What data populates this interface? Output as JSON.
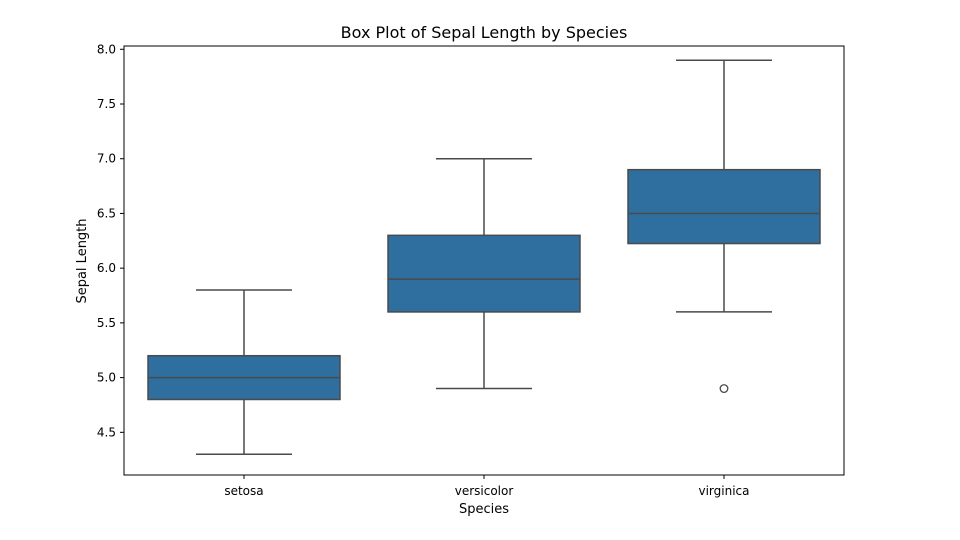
{
  "chart_data": {
    "type": "box",
    "title": "Box Plot of Sepal Length by Species",
    "xlabel": "Species",
    "ylabel": "Sepal Length",
    "ylim": [
      4.11,
      8.03
    ],
    "yticks": [
      "4.5",
      "5.0",
      "5.5",
      "6.0",
      "6.5",
      "7.0",
      "7.5",
      "8.0"
    ],
    "grid": false,
    "color": "#2f6fa0",
    "categories": [
      "setosa",
      "versicolor",
      "virginica"
    ],
    "boxes": [
      {
        "category": "setosa",
        "whisker_low": 4.3,
        "q1": 4.8,
        "median": 5.0,
        "q3": 5.2,
        "whisker_high": 5.8,
        "outliers": []
      },
      {
        "category": "versicolor",
        "whisker_low": 4.9,
        "q1": 5.6,
        "median": 5.9,
        "q3": 6.3,
        "whisker_high": 7.0,
        "outliers": []
      },
      {
        "category": "virginica",
        "whisker_low": 5.6,
        "q1": 6.225,
        "median": 6.5,
        "q3": 6.9,
        "whisker_high": 7.9,
        "outliers": [
          4.9
        ]
      }
    ]
  }
}
